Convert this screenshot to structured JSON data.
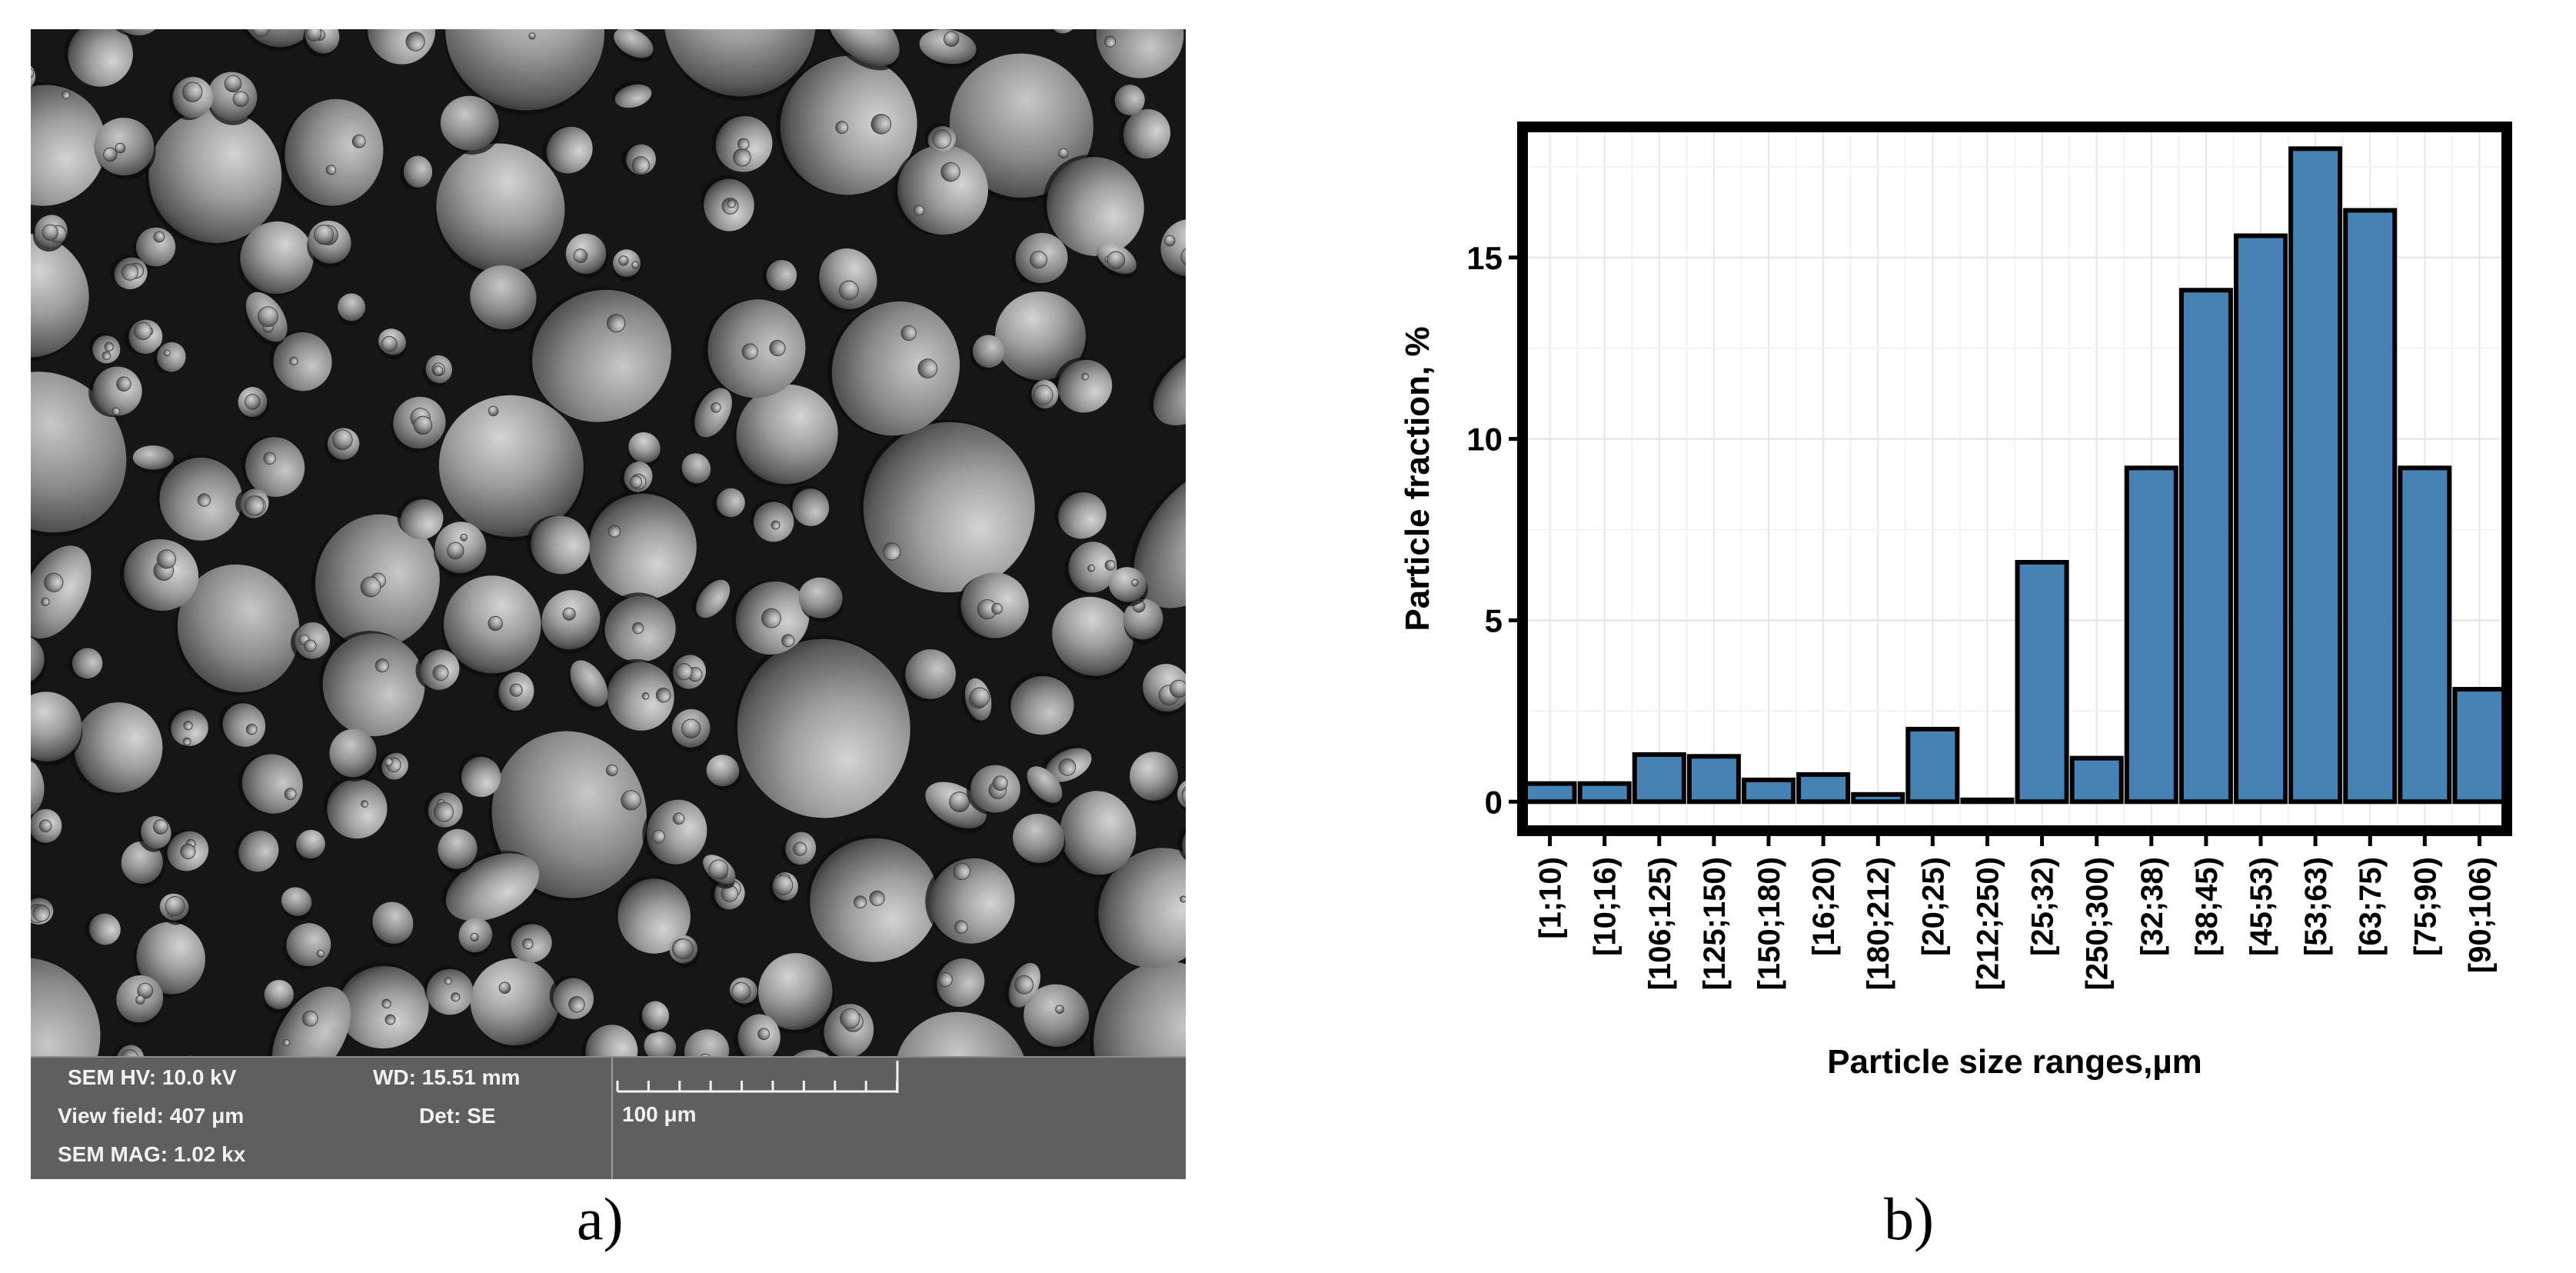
{
  "panels": {
    "a_label": "a)",
    "b_label": "b)"
  },
  "sem_info": {
    "hv": "SEM HV: 10.0 kV",
    "wd": "WD: 15.51 mm",
    "view_field": "View field: 407 μm",
    "det": "Det: SE",
    "mag": "SEM MAG: 1.02 kx",
    "scale_label": "100 μm"
  },
  "chart_data": {
    "type": "bar",
    "categories": [
      "[1;10)",
      "[10;16)",
      "[106;125)",
      "[125;150)",
      "[150;180)",
      "[16;20)",
      "[180;212)",
      "[20;25)",
      "[212;250)",
      "[25;32)",
      "[250;300)",
      "[32;38)",
      "[38;45)",
      "[45;53)",
      "[53;63)",
      "[63;75)",
      "[75;90)",
      "[90;106)"
    ],
    "values": [
      0.5,
      0.5,
      1.3,
      1.25,
      0.6,
      0.75,
      0.2,
      2.0,
      0.05,
      6.6,
      1.2,
      9.2,
      14.1,
      15.6,
      18.0,
      16.3,
      9.2,
      3.1
    ],
    "xlabel": "Particle size ranges,µm",
    "ylabel": "Particle fraction, %",
    "yticks": [
      0,
      5,
      10,
      15
    ],
    "ylim": [
      -0.8,
      18.6
    ],
    "grid": true,
    "bar_color": "#4682b4",
    "edge_color": "#000000"
  }
}
